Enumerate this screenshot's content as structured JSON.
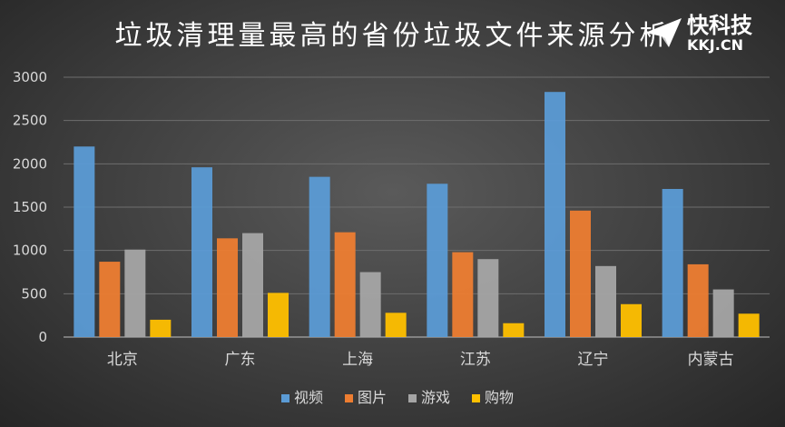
{
  "logo": {
    "text": "快科技",
    "sub": "KKJ.CN"
  },
  "chart_data": {
    "type": "bar",
    "title": "垃圾清理量最高的省份垃圾文件来源分析",
    "categories": [
      "北京",
      "广东",
      "上海",
      "江苏",
      "辽宁",
      "内蒙古"
    ],
    "ylim": [
      0,
      3000
    ],
    "yticks": [
      0,
      500,
      1000,
      1500,
      2000,
      2500,
      3000
    ],
    "grid": true,
    "legend_position": "bottom",
    "series": [
      {
        "name": "视频",
        "color": "#5b9bd5",
        "values": [
          2200,
          1960,
          1850,
          1770,
          2830,
          1710
        ]
      },
      {
        "name": "图片",
        "color": "#ed7d31",
        "values": [
          870,
          1140,
          1210,
          980,
          1460,
          840
        ]
      },
      {
        "name": "游戏",
        "color": "#a5a5a5",
        "values": [
          1010,
          1200,
          750,
          900,
          820,
          550
        ]
      },
      {
        "name": "购物",
        "color": "#ffc000",
        "values": [
          200,
          510,
          280,
          160,
          380,
          270
        ]
      }
    ]
  }
}
